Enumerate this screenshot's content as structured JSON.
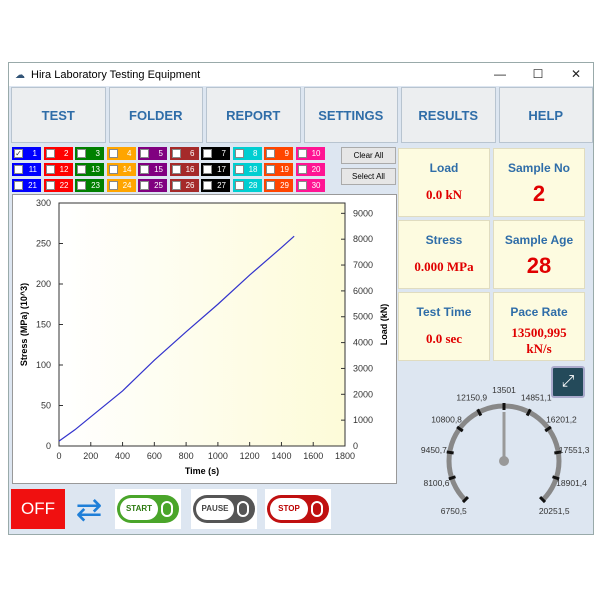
{
  "window": {
    "title": "Hira Laboratory Testing Equipment",
    "minimize": "—",
    "maximize": "☐",
    "close": "✕"
  },
  "menu": [
    "TEST",
    "FOLDER",
    "REPORT",
    "SETTINGS",
    "RESULTS",
    "HELP"
  ],
  "channels": {
    "colors": [
      "#0000ff",
      "#ff0000",
      "#008000",
      "#ffa500",
      "#800080",
      "#a52a2a",
      "#000000",
      "#00ced1",
      "#ff4500",
      "#ff1493"
    ],
    "checked": [
      1
    ],
    "clear_all": "Clear All",
    "select_all": "Select All"
  },
  "readouts": {
    "load": {
      "label": "Load",
      "value": "0.0 kN"
    },
    "sample_no": {
      "label": "Sample No",
      "value": "2"
    },
    "stress": {
      "label": "Stress",
      "value": "0.000 MPa"
    },
    "sample_age": {
      "label": "Sample Age",
      "value": "28"
    },
    "test_time": {
      "label": "Test Time",
      "value": "0.0 sec"
    },
    "pace_rate": {
      "label": "Pace Rate",
      "value": "13500,995 kN/s"
    }
  },
  "gauge": {
    "labels": [
      "6750,5",
      "8100,6",
      "9450,7",
      "10800,8",
      "12150,9",
      "13501",
      "14851,1",
      "16201,2",
      "17551,3",
      "18901,4",
      "20251,5"
    ],
    "value": 13501
  },
  "controls": {
    "off": "OFF",
    "start": "START",
    "pause": "PAUSE",
    "stop": "STOP"
  },
  "chart_data": {
    "type": "line",
    "xlabel": "Time (s)",
    "ylabel": "Stress (MPa) (10^3)",
    "y2label": "Load (kN)",
    "xlim": [
      0,
      1800
    ],
    "ylim": [
      0,
      300
    ],
    "y2lim": [
      0,
      9400
    ],
    "xticks": [
      0,
      200,
      400,
      600,
      800,
      1000,
      1200,
      1400,
      1600,
      1800
    ],
    "yticks": [
      0,
      50,
      100,
      150,
      200,
      250,
      300
    ],
    "y2ticks": [
      0,
      1000,
      2000,
      3000,
      4000,
      5000,
      6000,
      7000,
      8000,
      9000
    ],
    "series": [
      {
        "color": "#3333cc",
        "x": [
          0,
          100,
          200,
          400,
          600,
          800,
          1000,
          1200,
          1400,
          1480
        ],
        "y": [
          6,
          20,
          36,
          68,
          106,
          141,
          175,
          211,
          245,
          259
        ]
      }
    ]
  }
}
